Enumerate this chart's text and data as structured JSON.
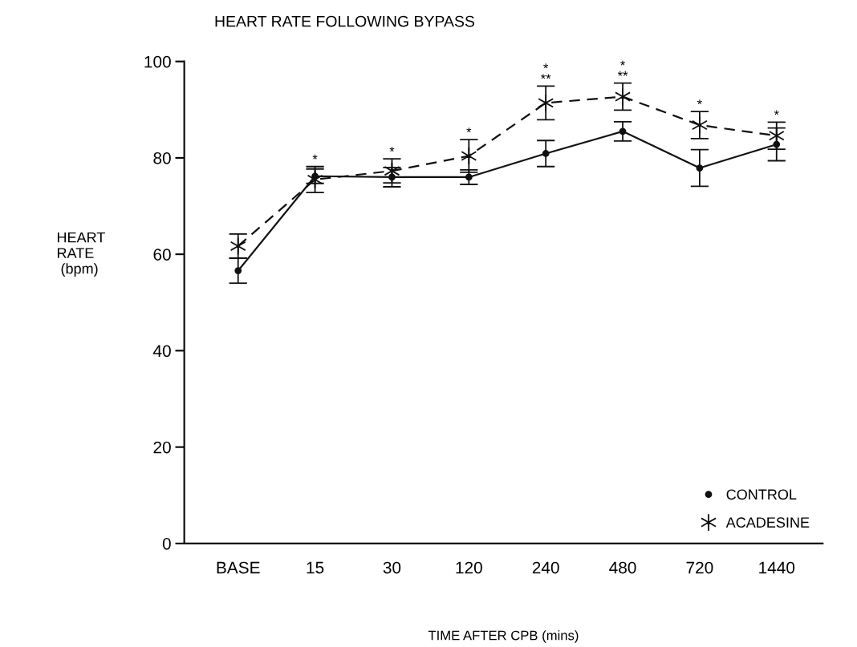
{
  "chart_data": {
    "type": "line",
    "title": "HEART RATE FOLLOWING BYPASS",
    "xlabel": "TIME AFTER CPB (mins)",
    "ylabel": "HEART\nRATE\n (bpm)",
    "categories": [
      "BASE",
      "15",
      "30",
      "120",
      "240",
      "480",
      "720",
      "1440"
    ],
    "series": [
      {
        "name": "CONTROL",
        "color": "#111111",
        "marker": "circle",
        "line_style": "solid",
        "values": [
          56.6,
          76.2,
          76,
          76,
          80.9,
          85.5,
          77.9,
          82.8
        ],
        "errors": [
          2.6,
          1.5,
          2,
          1.5,
          2.7,
          2,
          3.8,
          3.4
        ]
      },
      {
        "name": "ACADESINE",
        "color": "#111111",
        "marker": "cross",
        "line_style": "dashed",
        "values": [
          61.7,
          75.5,
          77.3,
          80.4,
          91.4,
          92.7,
          86.8,
          84.6
        ],
        "errors": [
          2.5,
          2.7,
          2.5,
          3.4,
          3.5,
          2.8,
          2.8,
          2.8
        ]
      }
    ],
    "annotations": [
      {
        "text": "*",
        "x": "15",
        "y": 75.5
      },
      {
        "text": "*",
        "x": "30",
        "y": 77.3
      },
      {
        "text": "*",
        "x": "120",
        "y": 80.4
      },
      {
        "text": "*\n**",
        "x": "240",
        "y": 91.4
      },
      {
        "text": "*\n**",
        "x": "480",
        "y": 92.7
      },
      {
        "text": "*",
        "x": "720",
        "y": 86.8
      },
      {
        "text": "*",
        "x": "1440",
        "y": 84.6
      }
    ],
    "ylim": [
      0,
      100
    ],
    "yticks": [
      0,
      20,
      40,
      60,
      80,
      100
    ],
    "grid": false,
    "legend": "bottom right"
  }
}
